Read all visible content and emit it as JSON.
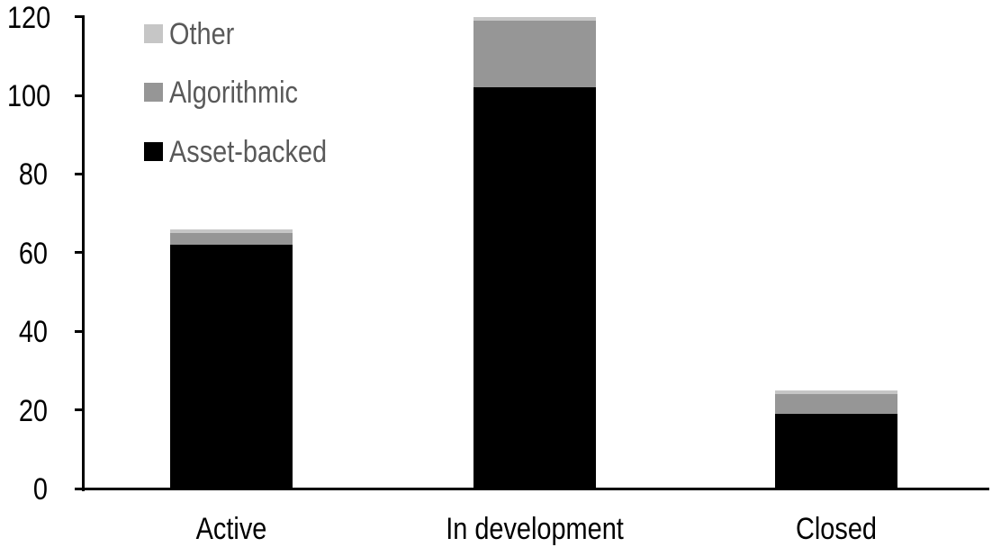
{
  "chart_data": {
    "type": "bar",
    "stacked": true,
    "title": "",
    "xlabel": "",
    "ylabel": "",
    "categories": [
      "Active",
      "In development",
      "Closed"
    ],
    "series": [
      {
        "name": "Asset-backed",
        "color": "#000000",
        "values": [
          62,
          102,
          19
        ]
      },
      {
        "name": "Algorithmic",
        "color": "#969696",
        "values": [
          3,
          17,
          5
        ]
      },
      {
        "name": "Other",
        "color": "#c6c6c6",
        "values": [
          1,
          1,
          1
        ]
      }
    ],
    "totals": [
      66,
      120,
      25
    ],
    "ylim": [
      0,
      120
    ],
    "yticks": [
      0,
      20,
      40,
      60,
      80,
      100,
      120
    ],
    "grid": false,
    "legend_position": "top-left"
  },
  "legend": {
    "items": [
      {
        "label": "Other",
        "color": "#c6c6c6"
      },
      {
        "label": "Algorithmic",
        "color": "#969696"
      },
      {
        "label": "Asset-backed",
        "color": "#000000"
      }
    ]
  },
  "colors": {
    "axis": "#000000",
    "tick_label_text": "#000000",
    "category_label_text": "#000000",
    "legend_text": "#595959",
    "background": "#ffffff"
  }
}
